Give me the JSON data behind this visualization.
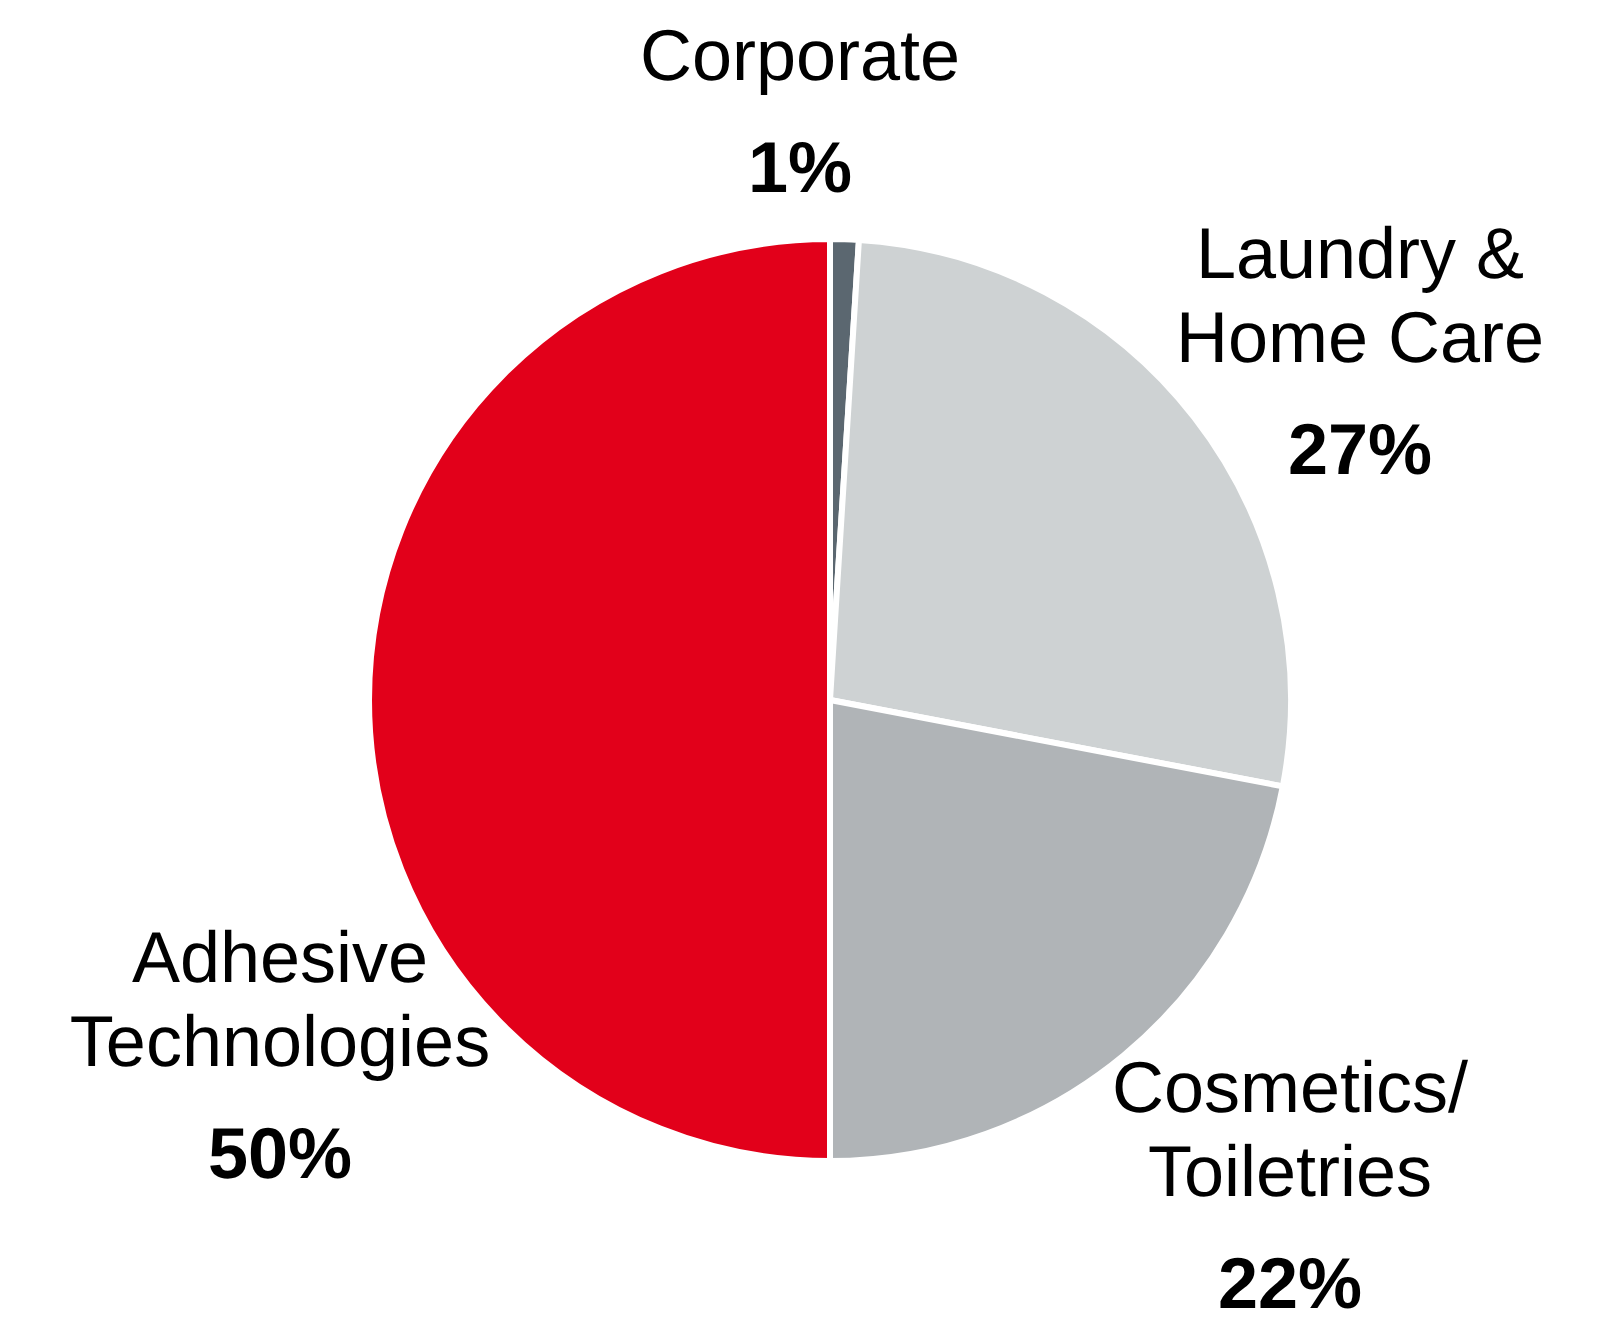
{
  "chart_data": {
    "type": "pie",
    "categories": [
      "Corporate",
      "Laundry & Home Care",
      "Cosmetics/Toiletries",
      "Adhesive Technologies"
    ],
    "values": [
      1,
      27,
      22,
      50
    ],
    "colors": [
      "#5b6770",
      "#ced2d3",
      "#b0b4b7",
      "#e2001a"
    ],
    "value_labels": [
      "1%",
      "27%",
      "22%",
      "50%"
    ],
    "legend": false
  }
}
